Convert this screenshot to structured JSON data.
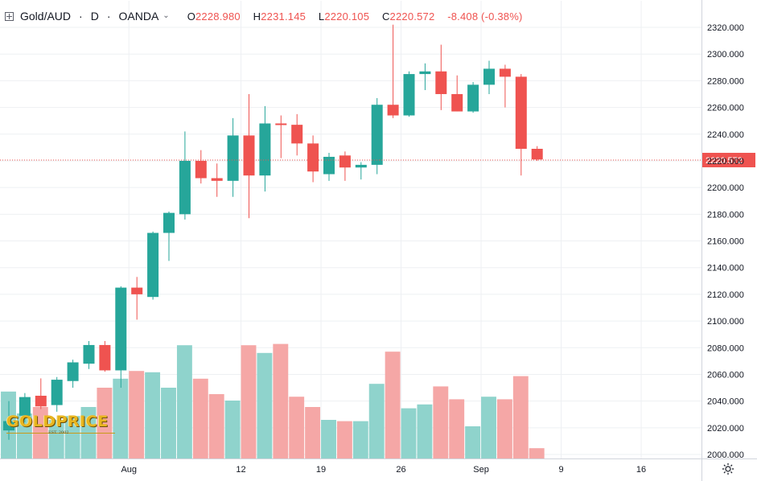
{
  "header": {
    "symbol": "Gold/AUD",
    "sep": "·",
    "interval": "D",
    "source": "OANDA",
    "open_label": "O",
    "open": "2228.980",
    "high_label": "H",
    "high": "2231.145",
    "low_label": "L",
    "low": "2220.105",
    "close_label": "C",
    "close": "2220.572",
    "change": "-8.408 (-0.38%)"
  },
  "logo": {
    "text": "GOLDPRICE",
    "est": "EST. 2002"
  },
  "colors": {
    "up": "#26a69a",
    "down": "#ef5350",
    "up_volume": "#8fd3cc",
    "down_volume": "#f5a7a6",
    "grid": "#eef0f3",
    "axis_text": "#131722"
  },
  "chart_data": {
    "type": "candlestick",
    "title": "Gold/AUD · D · OANDA",
    "ylim": [
      1998,
      2324
    ],
    "y_ticks": [
      "2000.000",
      "2020.000",
      "2040.000",
      "2060.000",
      "2080.000",
      "2100.000",
      "2120.000",
      "2140.000",
      "2160.000",
      "2180.000",
      "2200.000",
      "2220.000",
      "2240.000",
      "2260.000",
      "2280.000",
      "2300.000",
      "2320.000"
    ],
    "x_ticks": [
      {
        "label": "Aug",
        "index": 7.5
      },
      {
        "label": "12",
        "index": 14.5
      },
      {
        "label": "19",
        "index": 19.5
      },
      {
        "label": "26",
        "index": 24.5
      },
      {
        "label": "Sep",
        "index": 29.5
      },
      {
        "label": "9",
        "index": 34.5
      },
      {
        "label": "16",
        "index": 39.5
      }
    ],
    "last_price": 2220.572,
    "last_price_label": "2220.572",
    "volume_scale": "relative (0-1)",
    "candles": [
      {
        "o": 2018,
        "h": 2040,
        "l": 2011,
        "c": 2025,
        "v": 0.52
      },
      {
        "o": 2029,
        "h": 2046,
        "l": 2024,
        "c": 2043,
        "v": 0.35
      },
      {
        "o": 2044,
        "h": 2057,
        "l": 2034,
        "c": 2036,
        "v": 0.4
      },
      {
        "o": 2037,
        "h": 2058,
        "l": 2032,
        "c": 2056,
        "v": 0.3
      },
      {
        "o": 2055,
        "h": 2071,
        "l": 2050,
        "c": 2069,
        "v": 0.33
      },
      {
        "o": 2068,
        "h": 2085,
        "l": 2064,
        "c": 2082,
        "v": 0.4
      },
      {
        "o": 2082,
        "h": 2085,
        "l": 2062,
        "c": 2063,
        "v": 0.55
      },
      {
        "o": 2063,
        "h": 2126,
        "l": 2050,
        "c": 2125,
        "v": 0.62
      },
      {
        "o": 2125,
        "h": 2133,
        "l": 2101,
        "c": 2120,
        "v": 0.68
      },
      {
        "o": 2118,
        "h": 2167,
        "l": 2116,
        "c": 2166,
        "v": 0.67
      },
      {
        "o": 2166,
        "h": 2182,
        "l": 2145,
        "c": 2181,
        "v": 0.55
      },
      {
        "o": 2180,
        "h": 2242,
        "l": 2176,
        "c": 2220,
        "v": 0.88
      },
      {
        "o": 2220,
        "h": 2228,
        "l": 2203,
        "c": 2207,
        "v": 0.62
      },
      {
        "o": 2207,
        "h": 2218,
        "l": 2193,
        "c": 2205,
        "v": 0.5
      },
      {
        "o": 2205,
        "h": 2252,
        "l": 2193,
        "c": 2239,
        "v": 0.45
      },
      {
        "o": 2239,
        "h": 2270,
        "l": 2177,
        "c": 2209,
        "v": 0.88
      },
      {
        "o": 2209,
        "h": 2261,
        "l": 2197,
        "c": 2248,
        "v": 0.82
      },
      {
        "o": 2248,
        "h": 2254,
        "l": 2222,
        "c": 2247,
        "v": 0.89
      },
      {
        "o": 2247,
        "h": 2255,
        "l": 2224,
        "c": 2233,
        "v": 0.48
      },
      {
        "o": 2233,
        "h": 2239,
        "l": 2204,
        "c": 2212,
        "v": 0.4
      },
      {
        "o": 2210,
        "h": 2226,
        "l": 2205,
        "c": 2223,
        "v": 0.3
      },
      {
        "o": 2224,
        "h": 2227,
        "l": 2205,
        "c": 2215,
        "v": 0.29
      },
      {
        "o": 2215,
        "h": 2219,
        "l": 2206,
        "c": 2217,
        "v": 0.29
      },
      {
        "o": 2217,
        "h": 2267,
        "l": 2210,
        "c": 2262,
        "v": 0.58
      },
      {
        "o": 2262,
        "h": 2322,
        "l": 2252,
        "c": 2254,
        "v": 0.83
      },
      {
        "o": 2254,
        "h": 2287,
        "l": 2253,
        "c": 2285,
        "v": 0.39
      },
      {
        "o": 2285,
        "h": 2293,
        "l": 2273,
        "c": 2287,
        "v": 0.42
      },
      {
        "o": 2287,
        "h": 2307,
        "l": 2258,
        "c": 2270,
        "v": 0.56
      },
      {
        "o": 2270,
        "h": 2284,
        "l": 2257,
        "c": 2257,
        "v": 0.46
      },
      {
        "o": 2257,
        "h": 2279,
        "l": 2256,
        "c": 2277,
        "v": 0.25
      },
      {
        "o": 2277,
        "h": 2295,
        "l": 2270,
        "c": 2289,
        "v": 0.48
      },
      {
        "o": 2289,
        "h": 2292,
        "l": 2260,
        "c": 2283,
        "v": 0.46
      },
      {
        "o": 2283,
        "h": 2285,
        "l": 2209,
        "c": 2229,
        "v": 0.64
      },
      {
        "o": 2229,
        "h": 2231,
        "l": 2220,
        "c": 2221,
        "v": 0.08
      }
    ]
  }
}
